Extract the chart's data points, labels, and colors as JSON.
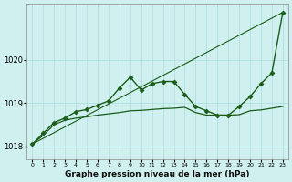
{
  "title": "Graphe pression niveau de la mer (hPa)",
  "bg_color": "#cff0ee",
  "grid_color": "#aadddd",
  "line_color": "#1a5c1a",
  "x_ticks": [
    0,
    1,
    2,
    3,
    4,
    5,
    6,
    7,
    8,
    9,
    10,
    11,
    12,
    13,
    14,
    15,
    16,
    17,
    18,
    19,
    20,
    21,
    22,
    23
  ],
  "ylim": [
    1017.7,
    1021.3
  ],
  "yticks": [
    1018,
    1019,
    1020
  ],
  "series": [
    {
      "x": [
        0,
        23
      ],
      "y": [
        1018.05,
        1021.1
      ],
      "marker": null,
      "linewidth": 0.8
    },
    {
      "x": [
        0,
        1,
        2,
        3,
        4,
        5,
        6,
        7,
        8,
        9,
        10,
        11,
        12,
        13,
        14,
        15,
        16,
        17,
        18,
        19,
        20,
        21,
        22,
        23
      ],
      "y": [
        1018.05,
        1018.25,
        1018.5,
        1018.6,
        1018.65,
        1018.68,
        1018.72,
        1018.75,
        1018.78,
        1018.82,
        1018.83,
        1018.85,
        1018.87,
        1018.88,
        1018.9,
        1018.78,
        1018.72,
        1018.72,
        1018.72,
        1018.73,
        1018.82,
        1018.84,
        1018.88,
        1018.92
      ],
      "marker": null,
      "linewidth": 0.9
    },
    {
      "x": [
        0,
        1,
        2,
        3,
        4,
        5,
        6,
        7,
        8,
        9,
        10,
        11,
        12,
        13,
        14,
        15,
        16,
        17,
        18,
        19,
        20,
        21,
        22,
        23
      ],
      "y": [
        1018.05,
        1018.3,
        1018.55,
        1018.65,
        1018.8,
        1018.85,
        1018.95,
        1019.05,
        1019.35,
        1019.6,
        1019.3,
        1019.45,
        1019.5,
        1019.5,
        1019.2,
        1018.92,
        1018.82,
        1018.72,
        1018.72,
        1018.92,
        1019.15,
        1019.45,
        1019.7,
        1021.1
      ],
      "marker": "D",
      "markersize": 2.5,
      "linewidth": 1.0
    }
  ]
}
